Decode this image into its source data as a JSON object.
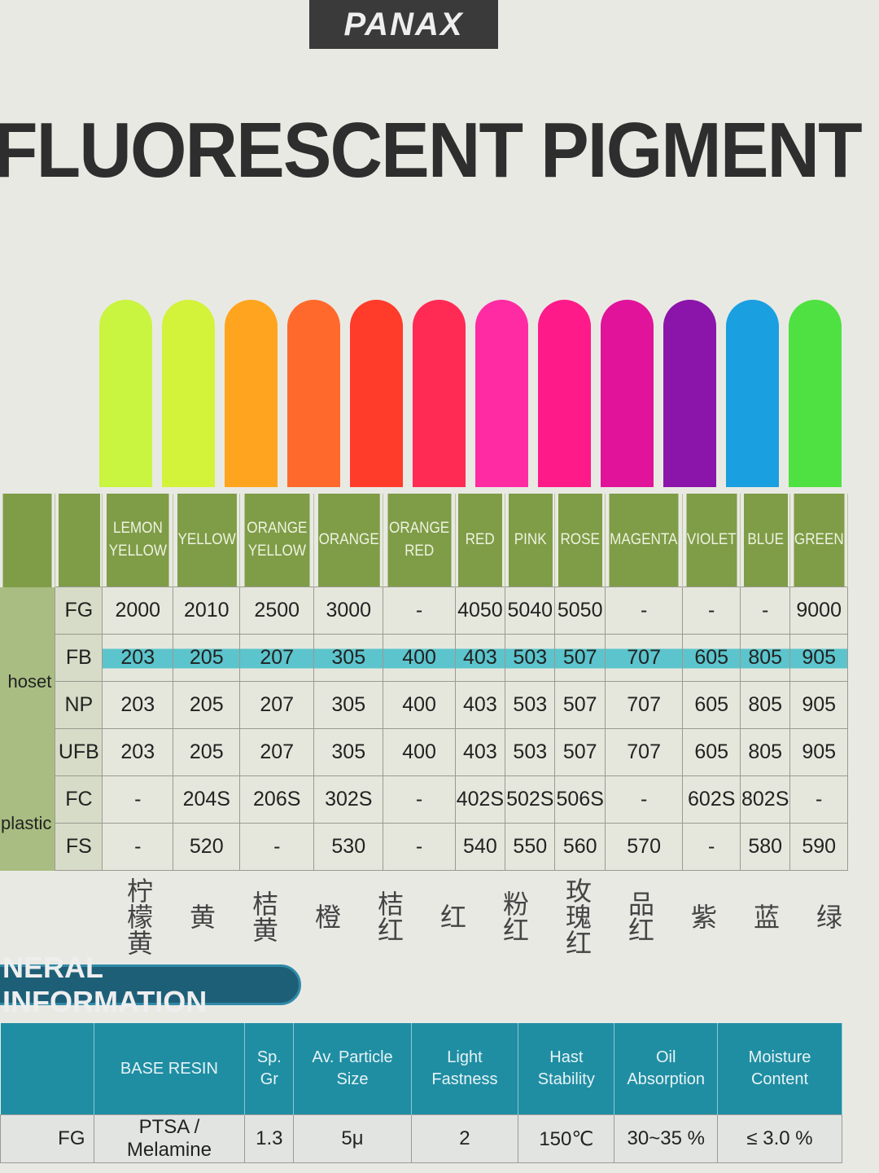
{
  "brand": "PANAX",
  "title": "FLUORESCENT  PIGMENT",
  "colors": [
    {
      "name": "LEMON YELLOW",
      "hex": "#c9f43f",
      "hand": "柠檬黄"
    },
    {
      "name": "YELLOW",
      "hex": "#d3f23a",
      "hand": "黄"
    },
    {
      "name": "ORANGE YELLOW",
      "hex": "#ffa41e",
      "hand": "桔黄"
    },
    {
      "name": "ORANGE",
      "hex": "#ff6a2c",
      "hand": "橙"
    },
    {
      "name": "ORANGE RED",
      "hex": "#ff3b2a",
      "hand": "桔红"
    },
    {
      "name": "RED",
      "hex": "#ff2b55",
      "hand": "红"
    },
    {
      "name": "PINK",
      "hex": "#ff2ba3",
      "hand": "粉红"
    },
    {
      "name": "ROSE",
      "hex": "#ff1a8a",
      "hand": "玫瑰红"
    },
    {
      "name": "MAGENTA",
      "hex": "#e0139a",
      "hand": "品红"
    },
    {
      "name": "VIOLET",
      "hex": "#8b14aa",
      "hand": "紫"
    },
    {
      "name": "BLUE",
      "hex": "#1a9fe0",
      "hand": "蓝"
    },
    {
      "name": "GREEN",
      "hex": "#4fe142",
      "hand": "绿"
    }
  ],
  "groups": [
    {
      "label": "hoset",
      "rows": [
        {
          "code": "FG",
          "values": [
            "2000",
            "2010",
            "2500",
            "3000",
            "-",
            "4050",
            "5040",
            "5050",
            "-",
            "-",
            "-",
            "9000"
          ]
        },
        {
          "code": "FB",
          "highlighted": true,
          "values": [
            "203",
            "205",
            "207",
            "305",
            "400",
            "403",
            "503",
            "507",
            "707",
            "605",
            "805",
            "905"
          ]
        },
        {
          "code": "NP",
          "values": [
            "203",
            "205",
            "207",
            "305",
            "400",
            "403",
            "503",
            "507",
            "707",
            "605",
            "805",
            "905"
          ]
        },
        {
          "code": "UFB",
          "values": [
            "203",
            "205",
            "207",
            "305",
            "400",
            "403",
            "503",
            "507",
            "707",
            "605",
            "805",
            "905"
          ]
        }
      ]
    },
    {
      "label": "plastic",
      "rows": [
        {
          "code": "FC",
          "values": [
            "-",
            "204S",
            "206S",
            "302S",
            "-",
            "402S",
            "502S",
            "506S",
            "-",
            "602S",
            "802S",
            "-"
          ]
        },
        {
          "code": "FS",
          "values": [
            "-",
            "520",
            "-",
            "530",
            "-",
            "540",
            "550",
            "560",
            "570",
            "-",
            "580",
            "590"
          ]
        }
      ]
    }
  ],
  "general": {
    "heading": "NERAL INFORMATION",
    "headers": [
      "BASE RESIN",
      "Sp. Gr",
      "Av. Particle Size",
      "Light Fastness",
      "Hast Stability",
      "Oil Absorption",
      "Moisture Content"
    ],
    "rows": [
      {
        "code": "FG",
        "values": [
          "PTSA / Melamine",
          "1.3",
          "5μ",
          "2",
          "150℃",
          "30~35 %",
          "≤ 3.0 %"
        ]
      }
    ]
  }
}
